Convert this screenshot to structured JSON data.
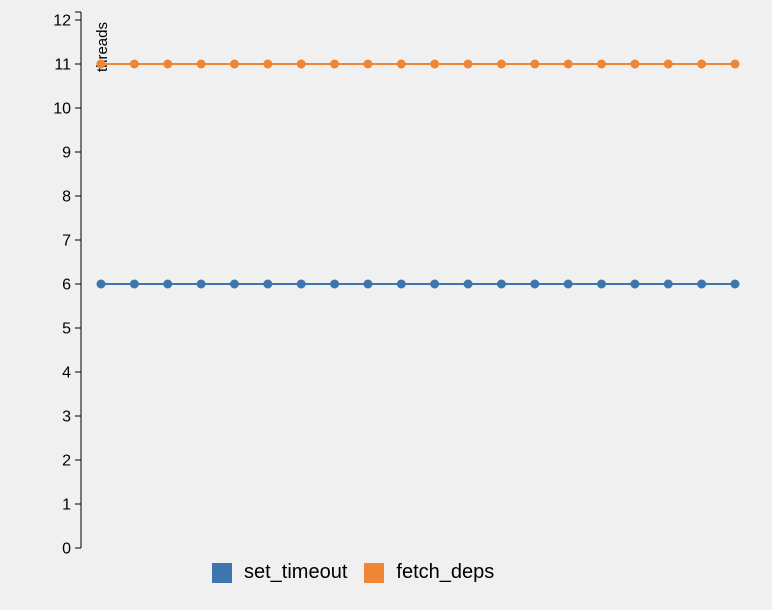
{
  "chart_data": {
    "type": "line",
    "title": "",
    "xlabel": "",
    "ylabel": "threads",
    "ylim": [
      0,
      12
    ],
    "yticks": [
      0,
      1,
      2,
      3,
      4,
      5,
      6,
      7,
      8,
      9,
      10,
      11,
      12
    ],
    "x": [
      1,
      2,
      3,
      4,
      5,
      6,
      7,
      8,
      9,
      10,
      11,
      12,
      13,
      14,
      15,
      16,
      17,
      18,
      19,
      20
    ],
    "series": [
      {
        "name": "set_timeout",
        "color": "#3d76af",
        "values": [
          6,
          6,
          6,
          6,
          6,
          6,
          6,
          6,
          6,
          6,
          6,
          6,
          6,
          6,
          6,
          6,
          6,
          6,
          6,
          6
        ]
      },
      {
        "name": "fetch_deps",
        "color": "#ef8636",
        "values": [
          11,
          11,
          11,
          11,
          11,
          11,
          11,
          11,
          11,
          11,
          11,
          11,
          11,
          11,
          11,
          11,
          11,
          11,
          11,
          11
        ]
      }
    ],
    "grid": false,
    "legend_position": "bottom"
  }
}
